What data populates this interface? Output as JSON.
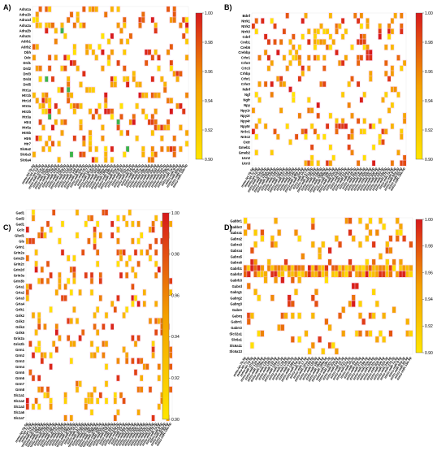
{
  "chart_data": [
    {
      "type": "heatmap",
      "panel": "A)",
      "rows": [
        "Adra1a",
        "Adra1b",
        "Adra1d",
        "Adra2a",
        "Adra2b",
        "Adra2c",
        "Adrb1",
        "Adrb2",
        "Dbh",
        "Ddc",
        "Drd1",
        "Drd2",
        "Drd3",
        "Drd4",
        "Drd5",
        "Htr1a",
        "Htr1b",
        "Htr1d",
        "Htr2a",
        "Htr2b",
        "Htr3a",
        "Htr4",
        "Htr5a",
        "Htr5b",
        "Htr6",
        "Htr7",
        "Slc6a2",
        "Slc6a3",
        "Slc6a4"
      ],
      "columns": [
        "mmu-let-7b-5p",
        "mmu-let-7c-5p",
        "mmu-let-7d-5p",
        "mmu-miR-101a-3p",
        "mmu-miR-124-3p",
        "mmu-miR-125a-5p",
        "mmu-miR-125b-5p",
        "mmu-miR-128-3p",
        "mmu-miR-129-5p",
        "mmu-miR-132-3p",
        "mmu-miR-135a-5p",
        "mmu-miR-137-3p",
        "mmu-miR-138-5p",
        "mmu-miR-139-5p",
        "mmu-miR-144-3p",
        "mmu-miR-148a-3p",
        "mmu-miR-15a-5p",
        "mmu-miR-16-5p",
        "mmu-miR-17-5p",
        "mmu-miR-181a-5p",
        "mmu-miR-182-5p",
        "mmu-miR-183-5p",
        "mmu-miR-186-5p",
        "mmu-miR-190a-5p",
        "mmu-miR-199a-5p",
        "mmu-miR-19b-3p",
        "mmu-miR-200c-3p",
        "mmu-miR-20a-5p",
        "mmu-miR-218-5p",
        "mmu-miR-22-3p",
        "mmu-miR-221-3p",
        "mmu-miR-23a-3p",
        "mmu-miR-24-3p",
        "mmu-miR-25-3p",
        "mmu-miR-26a-5p",
        "mmu-miR-27a-3p",
        "mmu-miR-29a-3p",
        "mmu-miR-30a-5p",
        "mmu-miR-30b-5p",
        "mmu-miR-30c-5p",
        "mmu-miR-30d-5p",
        "mmu-miR-30e-5p",
        "mmu-miR-320-3p",
        "mmu-miR-34a-5p",
        "mmu-miR-375-3p",
        "mmu-miR-7a-5p",
        "mmu-miR-9-5p",
        "mmu-miR-92a-3p",
        "mmu-miR-93-5p",
        "mmu-miR-15b-5p"
      ],
      "colorbar": {
        "min": 0.9,
        "max": 1.0,
        "ticks": [
          "1.00",
          "0.98",
          "0.96",
          "0.94",
          "0.92",
          "0.90"
        ]
      },
      "seed": 11,
      "density": 0.17,
      "green": [
        [
          4,
          9
        ],
        [
          13,
          4
        ],
        [
          15,
          11
        ],
        [
          20,
          5
        ],
        [
          21,
          27
        ],
        [
          26,
          30
        ],
        [
          27,
          12
        ]
      ]
    },
    {
      "type": "heatmap",
      "panel": "B)",
      "rows": [
        "Bdnf",
        "Ntrk1",
        "Ntrk2",
        "Ntrk3",
        "Cdnf",
        "Creb1",
        "Creb5",
        "Crebbp",
        "Crhr1",
        "Crhr2",
        "Crtc3",
        "Crhbp",
        "Crhr1",
        "Crhr2",
        "Ndnf",
        "Ngf",
        "Ngfr",
        "Npy",
        "Npy1r",
        "Npy2r",
        "Npy4r",
        "Npy5r",
        "Nr3c1",
        "Nr3c2",
        "Oxtr",
        "Gmeb1",
        "Gmeb2",
        "Ucn2",
        "Ucn3"
      ],
      "columns": [
        "mmu-let-7b-5p",
        "mmu-let-7c-5p",
        "mmu-let-7d-5p",
        "mmu-miR-101a-3p",
        "mmu-miR-124-3p",
        "mmu-miR-125a-5p",
        "mmu-miR-125b-5p",
        "mmu-miR-128-3p",
        "mmu-miR-129-5p",
        "mmu-miR-132-3p",
        "mmu-miR-135a-5p",
        "mmu-miR-137-3p",
        "mmu-miR-138-5p",
        "mmu-miR-139-5p",
        "mmu-miR-144-3p",
        "mmu-miR-148a-3p",
        "mmu-miR-15a-5p",
        "mmu-miR-16-5p",
        "mmu-miR-17-5p",
        "mmu-miR-181a-5p",
        "mmu-miR-182-5p",
        "mmu-miR-183-5p",
        "mmu-miR-186-5p",
        "mmu-miR-190a-5p",
        "mmu-miR-199a-5p",
        "mmu-miR-19b-3p",
        "mmu-miR-200c-3p",
        "mmu-miR-20a-5p",
        "mmu-miR-218-5p",
        "mmu-miR-22-3p",
        "mmu-miR-221-3p",
        "mmu-miR-23a-3p",
        "mmu-miR-24-3p",
        "mmu-miR-25-3p",
        "mmu-miR-26a-5p",
        "mmu-miR-27a-3p",
        "mmu-miR-29a-3p",
        "mmu-miR-30a-5p",
        "mmu-miR-30b-5p",
        "mmu-miR-30c-5p",
        "mmu-miR-30d-5p",
        "mmu-miR-30e-5p",
        "mmu-miR-320-3p",
        "mmu-miR-34a-5p",
        "mmu-miR-375-3p",
        "mmu-miR-7a-5p",
        "mmu-miR-9-5p",
        "mmu-miR-92a-3p",
        "mmu-miR-93-5p",
        "mmu-miR-15b-5p"
      ],
      "colorbar": {
        "min": 0.9,
        "max": 1.0,
        "ticks": [
          "1.00",
          "0.98",
          "0.96",
          "0.94",
          "0.92",
          "0.90"
        ]
      },
      "seed": 23,
      "density": 0.14,
      "green": []
    },
    {
      "type": "heatmap",
      "panel": "C)",
      "rows": [
        "Gad1",
        "Gad2",
        "Gad1",
        "Gclc",
        "Glud1",
        "Gls",
        "Grin1",
        "Grin2a",
        "Grin2b",
        "Grin2c",
        "Grin2d",
        "Grin3a",
        "Grin3b",
        "Gria1",
        "Gria2",
        "Gria3",
        "Gria4",
        "Grik1",
        "Grik2",
        "Grik3",
        "Grik4",
        "Grik5",
        "Grin2a",
        "Grin2b",
        "Grm1",
        "Grm2",
        "Grm3",
        "Grm4",
        "Grm5",
        "Grm6",
        "Grm7",
        "Grm8",
        "Slc1a1",
        "Slc1a2",
        "Slc1a3",
        "Slc1a6",
        "Slc1a7"
      ],
      "columns": [
        "mmu-let-7b-5p",
        "mmu-let-7c-5p",
        "mmu-let-7d-5p",
        "mmu-miR-101a-3p",
        "mmu-miR-124-3p",
        "mmu-miR-125a-5p",
        "mmu-miR-125b-5p",
        "mmu-miR-128-3p",
        "mmu-miR-129-5p",
        "mmu-miR-132-3p",
        "mmu-miR-135a-5p",
        "mmu-miR-137-3p",
        "mmu-miR-138-5p",
        "mmu-miR-139-5p",
        "mmu-miR-144-3p",
        "mmu-miR-148a-3p",
        "mmu-miR-15a-5p",
        "mmu-miR-16-5p",
        "mmu-miR-17-5p",
        "mmu-miR-181a-5p",
        "mmu-miR-182-5p",
        "mmu-miR-183-5p",
        "mmu-miR-186-5p",
        "mmu-miR-190a-5p",
        "mmu-miR-199a-5p",
        "mmu-miR-19b-3p",
        "mmu-miR-200c-3p",
        "mmu-miR-20a-5p",
        "mmu-miR-218-5p",
        "mmu-miR-22-3p",
        "mmu-miR-221-3p",
        "mmu-miR-23a-3p",
        "mmu-miR-24-3p",
        "mmu-miR-25-3p",
        "mmu-miR-26a-5p",
        "mmu-miR-27a-3p",
        "mmu-miR-29a-3p",
        "mmu-miR-30a-5p",
        "mmu-miR-30b-5p",
        "mmu-miR-30c-5p",
        "mmu-miR-30d-5p",
        "mmu-miR-30e-5p",
        "mmu-miR-320-3p",
        "mmu-miR-34a-5p",
        "mmu-miR-375-3p",
        "mmu-miR-7a-5p",
        "mmu-miR-9-5p",
        "mmu-miR-92a-3p",
        "mmu-miR-93-5p",
        "mmu-miR-15b-5p"
      ],
      "colorbar": {
        "min": 0.9,
        "max": 1.0,
        "ticks": [
          "1.00",
          "0.98",
          "0.96",
          "0.94",
          "0.92",
          "0.90"
        ]
      },
      "seed": 37,
      "density": 0.12,
      "green": []
    },
    {
      "type": "heatmap",
      "panel": "D)",
      "rows": [
        "Gabbr1",
        "Gabbr2",
        "Gabra1",
        "Gabra2",
        "Gabra3",
        "Gabra4",
        "Gabra5",
        "Gabra6",
        "Gabrb1",
        "Gabrb2",
        "Gabrb3",
        "Gabrd",
        "Gabrg1",
        "Gabrg2",
        "Gabrg3",
        "Gabre",
        "Gabrq",
        "Gabrr1",
        "Gabrr2",
        "Slc32a1",
        "Slc6a1",
        "Slc6a11",
        "Slc6a13"
      ],
      "columns": [
        "mmu-let-7b-5p",
        "mmu-let-7c-5p",
        "mmu-let-7d-5p",
        "mmu-miR-101a-3p",
        "mmu-miR-124-3p",
        "mmu-miR-125a-5p",
        "mmu-miR-125b-5p",
        "mmu-miR-128-3p",
        "mmu-miR-129-5p",
        "mmu-miR-132-3p",
        "mmu-miR-135a-5p",
        "mmu-miR-137-3p",
        "mmu-miR-138-5p",
        "mmu-miR-139-5p",
        "mmu-miR-144-3p",
        "mmu-miR-148a-3p",
        "mmu-miR-15a-5p",
        "mmu-miR-16-5p",
        "mmu-miR-17-5p",
        "mmu-miR-181a-5p",
        "mmu-miR-182-5p",
        "mmu-miR-183-5p",
        "mmu-miR-186-5p",
        "mmu-miR-190a-5p",
        "mmu-miR-199a-5p",
        "mmu-miR-19b-3p",
        "mmu-miR-200c-3p",
        "mmu-miR-20a-5p",
        "mmu-miR-218-5p",
        "mmu-miR-22-3p",
        "mmu-miR-221-3p",
        "mmu-miR-23a-3p",
        "mmu-miR-24-3p",
        "mmu-miR-25-3p",
        "mmu-miR-26a-5p",
        "mmu-miR-27a-3p",
        "mmu-miR-29a-3p",
        "mmu-miR-30a-5p",
        "mmu-miR-30b-5p",
        "mmu-miR-30c-5p",
        "mmu-miR-30d-5p",
        "mmu-miR-30e-5p",
        "mmu-miR-320-3p",
        "mmu-miR-34a-5p",
        "mmu-miR-375-3p",
        "mmu-miR-7a-5p",
        "mmu-miR-9-5p",
        "mmu-miR-92a-3p",
        "mmu-miR-93-5p",
        "mmu-miR-15b-5p"
      ],
      "colorbar": {
        "min": 0.9,
        "max": 1.0,
        "ticks": [
          "1.00",
          "0.98",
          "0.96",
          "0.94",
          "0.92",
          "0.90"
        ]
      },
      "seed": 53,
      "density": 0.13,
      "green": [],
      "full_rows": [
        8,
        9
      ]
    }
  ],
  "colors": {
    "high": "#d7191c",
    "mid": "#f4a000",
    "low": "#ffe600",
    "halo": "#f7c9ef",
    "green": "#3cb44b"
  }
}
